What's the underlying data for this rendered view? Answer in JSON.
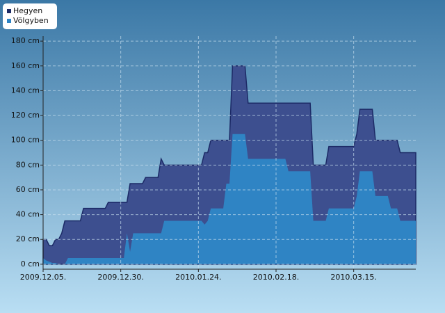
{
  "chart_data": {
    "type": "area",
    "x": [
      "2009-12-05",
      "2009-12-06",
      "2009-12-07",
      "2009-12-08",
      "2009-12-09",
      "2009-12-10",
      "2009-12-11",
      "2009-12-12",
      "2009-12-13",
      "2009-12-17",
      "2009-12-18",
      "2009-12-25",
      "2009-12-26",
      "2009-12-31",
      "2010-01-01",
      "2010-01-02",
      "2010-01-03",
      "2010-01-06",
      "2010-01-07",
      "2010-01-11",
      "2010-01-12",
      "2010-01-13",
      "2010-01-25",
      "2010-01-26",
      "2010-01-27",
      "2010-01-28",
      "2010-02-01",
      "2010-02-02",
      "2010-02-03",
      "2010-02-04",
      "2010-02-08",
      "2010-02-09",
      "2010-02-21",
      "2010-02-22",
      "2010-03-01",
      "2010-03-02",
      "2010-03-06",
      "2010-03-07",
      "2010-03-15",
      "2010-03-16",
      "2010-03-17",
      "2010-03-21",
      "2010-03-22",
      "2010-03-26",
      "2010-03-27",
      "2010-03-29",
      "2010-03-30",
      "2010-04-04"
    ],
    "series": [
      {
        "name": "Hegyen",
        "color": "#3d4f8f",
        "values": [
          20,
          20,
          15,
          15,
          20,
          20,
          25,
          35,
          35,
          35,
          45,
          45,
          50,
          50,
          50,
          65,
          65,
          65,
          70,
          70,
          85,
          80,
          80,
          90,
          90,
          100,
          100,
          100,
          100,
          160,
          160,
          130,
          130,
          130,
          130,
          80,
          80,
          95,
          95,
          105,
          125,
          125,
          100,
          100,
          100,
          100,
          90,
          90
        ]
      },
      {
        "name": "Völgyben",
        "color": "#2f84c4",
        "values": [
          5,
          3,
          2,
          1,
          1,
          0,
          0,
          0,
          5,
          5,
          5,
          5,
          5,
          5,
          25,
          10,
          25,
          25,
          25,
          25,
          25,
          35,
          35,
          32,
          35,
          45,
          45,
          65,
          65,
          105,
          105,
          85,
          85,
          75,
          75,
          35,
          35,
          45,
          45,
          55,
          75,
          75,
          55,
          55,
          45,
          45,
          35,
          35
        ]
      }
    ],
    "xlim": [
      "2009-12-05",
      "2010-04-04"
    ],
    "xticks": [
      {
        "value": "2009-12-05",
        "label": "2009.12.05."
      },
      {
        "value": "2009-12-30",
        "label": "2009.12.30."
      },
      {
        "value": "2010-01-24",
        "label": "2010.01.24."
      },
      {
        "value": "2010-02-18",
        "label": "2010.02.18."
      },
      {
        "value": "2010-03-15",
        "label": "2010.03.15."
      }
    ],
    "ylim": [
      -4,
      184
    ],
    "yticks": [
      {
        "value": 0,
        "label": "0 cm"
      },
      {
        "value": 20,
        "label": "20 cm"
      },
      {
        "value": 40,
        "label": "40 cm"
      },
      {
        "value": 60,
        "label": "60 cm"
      },
      {
        "value": 80,
        "label": "80 cm"
      },
      {
        "value": 100,
        "label": "100 cm"
      },
      {
        "value": 120,
        "label": "120 cm"
      },
      {
        "value": 140,
        "label": "140 cm"
      },
      {
        "value": 160,
        "label": "160 cm"
      },
      {
        "value": 180,
        "label": "180 cm"
      }
    ],
    "grid": true
  }
}
